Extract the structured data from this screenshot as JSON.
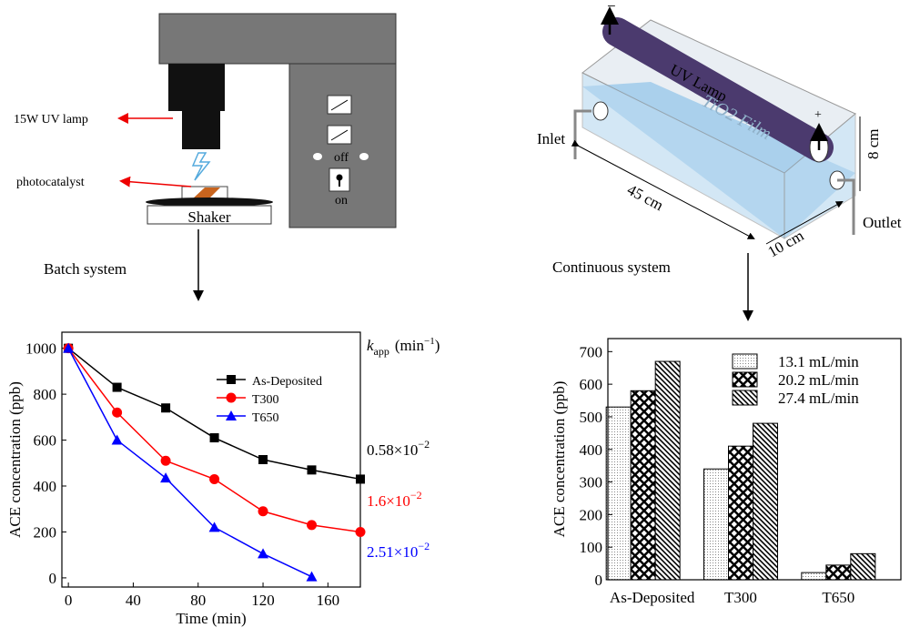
{
  "diagram": {
    "batch": {
      "lamp": "15W UV lamp",
      "catalyst": "photocatalyst",
      "shaker": "Shaker",
      "off": "off",
      "on": "on",
      "caption": "Batch system"
    },
    "continuous": {
      "minus": "−",
      "plus": "+",
      "lamp": "UV Lamp",
      "film": "TiO2 Film",
      "inlet": "Inlet",
      "outlet": "Outlet",
      "length": "45 cm",
      "width": "10 cm",
      "height": "8 cm",
      "caption": "Continuous system"
    }
  },
  "chart_data": [
    {
      "type": "line",
      "xlabel": "Time (min)",
      "ylabel": "ACE concentration (ppb)",
      "x": [
        0,
        30,
        60,
        90,
        120,
        150,
        180
      ],
      "xlim": [
        -4,
        180
      ],
      "xticks": [
        0,
        40,
        80,
        120,
        160
      ],
      "ylim": [
        -40,
        1070
      ],
      "yticks": [
        0,
        200,
        400,
        600,
        800,
        1000
      ],
      "series": [
        {
          "name": "As-Deposited",
          "color": "#000000",
          "marker": "square",
          "values": [
            1000,
            830,
            740,
            610,
            515,
            470,
            430
          ]
        },
        {
          "name": "T300",
          "color": "#ff0000",
          "marker": "circle",
          "values": [
            1000,
            720,
            510,
            430,
            290,
            230,
            200
          ]
        },
        {
          "name": "T650",
          "color": "#0000ff",
          "marker": "triangle",
          "values": [
            1000,
            600,
            435,
            220,
            105,
            5,
            null
          ]
        }
      ],
      "rate_header": {
        "symbol": "k",
        "subscript": "app",
        "unit": "(min",
        "unit_exponent": "−1",
        "unit_close": ")"
      },
      "rates": [
        {
          "mantissa": "0.58×10",
          "exponent": "−2",
          "color": "#000000"
        },
        {
          "mantissa": "1.6×10",
          "exponent": "−2",
          "color": "#ff0000"
        },
        {
          "mantissa": "2.51×10",
          "exponent": "−2",
          "color": "#0000ff"
        }
      ]
    },
    {
      "type": "bar",
      "ylabel": "ACE concentration (ppb)",
      "categories": [
        "As-Deposited",
        "T300",
        "T650"
      ],
      "ylim": [
        0,
        740
      ],
      "yticks": [
        0,
        100,
        200,
        300,
        400,
        500,
        600,
        700
      ],
      "series": [
        {
          "name": "13.1 mL/min",
          "pattern": "dots",
          "values": [
            530,
            340,
            22
          ]
        },
        {
          "name": "20.2 mL/min",
          "pattern": "crosshatch",
          "values": [
            580,
            410,
            45
          ]
        },
        {
          "name": "27.4 mL/min",
          "pattern": "diagonal",
          "values": [
            670,
            480,
            80
          ]
        }
      ]
    }
  ]
}
